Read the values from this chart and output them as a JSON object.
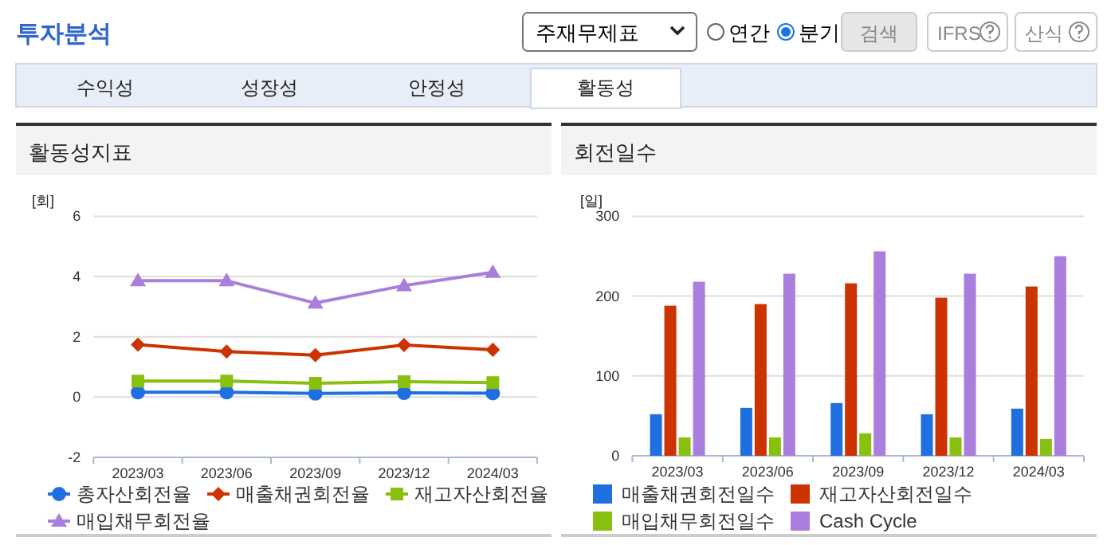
{
  "chart_data": [
    {
      "type": "other",
      "title": "투자분석",
      "annotations": [
        "주재무제표",
        "연간",
        "분기",
        "검색",
        "IFRS",
        "산식",
        "수익성",
        "성장성",
        "안정성",
        "활동성"
      ]
    },
    {
      "type": "line",
      "title": "활동성지표",
      "ylabel": "[회]",
      "categories": [
        "2023/03",
        "2023/06",
        "2023/09",
        "2023/12",
        "2024/03"
      ],
      "ylim": [
        -2,
        6
      ],
      "yticks": [
        -2,
        0,
        2,
        4,
        6
      ],
      "grid": "y",
      "legend": "bottom",
      "series": [
        {
          "name": "총자산회전율",
          "color": "#1f6fe0",
          "marker": "circle",
          "values": [
            0.16,
            0.16,
            0.12,
            0.14,
            0.13
          ]
        },
        {
          "name": "매출채권회전율",
          "color": "#cc3300",
          "marker": "diamond",
          "values": [
            1.74,
            1.51,
            1.39,
            1.73,
            1.57
          ]
        },
        {
          "name": "재고자산회전율",
          "color": "#88c010",
          "marker": "square",
          "values": [
            0.53,
            0.53,
            0.46,
            0.51,
            0.48
          ]
        },
        {
          "name": "매입채무회전율",
          "color": "#aa7edd",
          "marker": "triangle",
          "values": [
            3.86,
            3.86,
            3.12,
            3.7,
            4.14
          ]
        }
      ]
    },
    {
      "type": "bar",
      "title": "회전일수",
      "ylabel": "[일]",
      "categories": [
        "2023/03",
        "2023/06",
        "2023/09",
        "2023/12",
        "2024/03"
      ],
      "ylim": [
        0,
        300
      ],
      "yticks": [
        0,
        100,
        200,
        300
      ],
      "grid": "y",
      "legend": "bottom",
      "series": [
        {
          "name": "매출채권회전일수",
          "color": "#1f6fe0",
          "values": [
            52,
            60,
            66,
            52,
            59
          ]
        },
        {
          "name": "재고자산회전일수",
          "color": "#cc3300",
          "values": [
            188,
            190,
            216,
            198,
            212
          ]
        },
        {
          "name": "매입채무회전일수",
          "color": "#88c010",
          "values": [
            23,
            23,
            28,
            23,
            21
          ]
        },
        {
          "name": "Cash Cycle",
          "color": "#aa7edd",
          "values": [
            218,
            228,
            256,
            228,
            250
          ]
        }
      ]
    }
  ]
}
